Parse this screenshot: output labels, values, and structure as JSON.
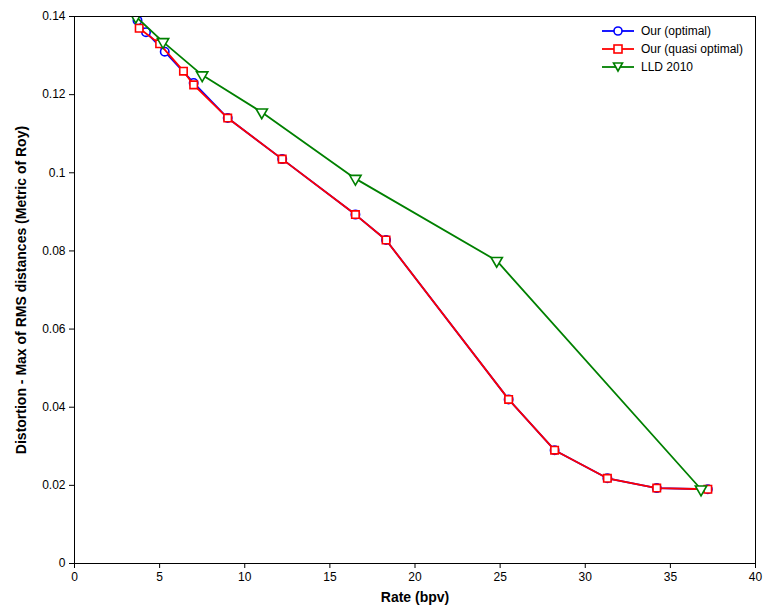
{
  "chart_data": {
    "type": "line",
    "x_label": "Rate (bpv)",
    "y_label": "Distortion - Max of RMS distances (Metric of Roy)",
    "xlim": [
      0,
      40
    ],
    "xticks": [
      0,
      5,
      10,
      15,
      20,
      25,
      30,
      35,
      40
    ],
    "ylim": [
      0,
      0.14
    ],
    "yticks": [
      0,
      0.02,
      0.04,
      0.06,
      0.08,
      0.1,
      0.12,
      0.14
    ],
    "grid": false,
    "legend": "top-right",
    "series": [
      {
        "name": "Our (optimal)",
        "color": "#0000ff",
        "marker": "circle",
        "x": [
          3.7,
          4.2,
          5.3,
          7.0,
          9.0,
          12.2,
          16.5,
          18.3,
          25.5,
          28.2,
          31.3,
          34.2,
          37.2
        ],
        "values": [
          0.139,
          0.136,
          0.131,
          0.123,
          0.114,
          0.1035,
          0.0893,
          0.0828,
          0.042,
          0.029,
          0.0218,
          0.0193,
          0.019
        ]
      },
      {
        "name": "Our (quasi optimal)",
        "color": "#ff0000",
        "marker": "square",
        "x": [
          3.8,
          5.0,
          6.4,
          7.0,
          9.0,
          12.2,
          16.5,
          18.3,
          25.5,
          28.2,
          31.3,
          34.2,
          37.2
        ],
        "values": [
          0.137,
          0.133,
          0.126,
          0.1225,
          0.114,
          0.1035,
          0.0893,
          0.0828,
          0.042,
          0.029,
          0.0218,
          0.0193,
          0.019
        ]
      },
      {
        "name": "LLD 2010",
        "color": "#008000",
        "marker": "triangle-down",
        "x": [
          3.6,
          5.2,
          7.5,
          11.0,
          16.5,
          24.8,
          36.8
        ],
        "values": [
          0.14,
          0.1335,
          0.125,
          0.1155,
          0.0985,
          0.0775,
          0.019
        ]
      }
    ]
  }
}
